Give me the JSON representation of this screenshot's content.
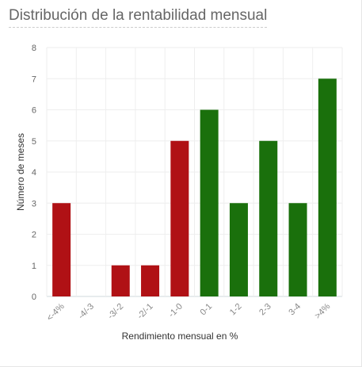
{
  "widget": {
    "title": "Distribución de la rentabilidad mensual"
  },
  "chart_data": {
    "type": "bar",
    "title": "Distribución de la rentabilidad mensual",
    "xlabel": "Rendimiento mensual en %",
    "ylabel": "Número de meses",
    "categories": [
      "<-4%",
      "-4/-3",
      "-3/-2",
      "-2/-1",
      "-1-0",
      "0-1",
      "1-2",
      "2-3",
      "3-4",
      ">4%"
    ],
    "values": [
      3,
      0,
      1,
      1,
      5,
      6,
      3,
      5,
      3,
      7
    ],
    "bar_colors": [
      "#b01115",
      "#b01115",
      "#b01115",
      "#b01115",
      "#b01115",
      "#1a700c",
      "#1a700c",
      "#1a700c",
      "#1a700c",
      "#1a700c"
    ],
    "ylim": [
      0,
      8
    ],
    "yticks": [
      0,
      1,
      2,
      3,
      4,
      5,
      6,
      7,
      8
    ],
    "grid": true,
    "legend": "none",
    "colors": {
      "negative": "#b01115",
      "positive": "#1a700c",
      "grid": "#eeeeee"
    }
  }
}
